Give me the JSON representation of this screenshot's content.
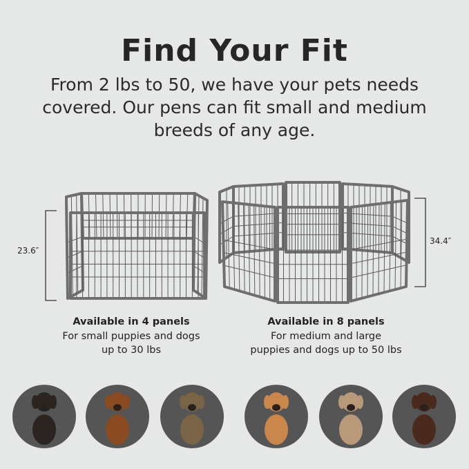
{
  "header": {
    "title": "Find Your Fit",
    "subtitle_lines": [
      "From 2 lbs to 50, we have your pets needs",
      "covered. Our pens can fit small and medium",
      "breeds of any age."
    ]
  },
  "products": [
    {
      "height_label": "23.6″",
      "heading": "Available in 4 panels",
      "desc_lines": [
        "For small puppies and dogs",
        "up to 30 lbs"
      ]
    },
    {
      "height_label": "34.4″",
      "heading": "Available in 8 panels",
      "desc_lines": [
        "For medium and large",
        "puppies and dogs up to 50 lbs"
      ]
    }
  ],
  "dogs": [
    {
      "icon": "chihuahua-icon",
      "color": "#2b2420"
    },
    {
      "icon": "dachshund-icon",
      "color": "#8a4a22"
    },
    {
      "icon": "yorkie-icon",
      "color": "#7a6448"
    },
    {
      "icon": "bulldog-icon",
      "color": "#c9874c"
    },
    {
      "icon": "australian-shepherd-icon",
      "color": "#b89a7a"
    },
    {
      "icon": "labrador-icon",
      "color": "#4a2a1c"
    }
  ],
  "colors": {
    "background": "#e6e8e8",
    "pen": "#6e6e6e",
    "circle": "#555555"
  }
}
